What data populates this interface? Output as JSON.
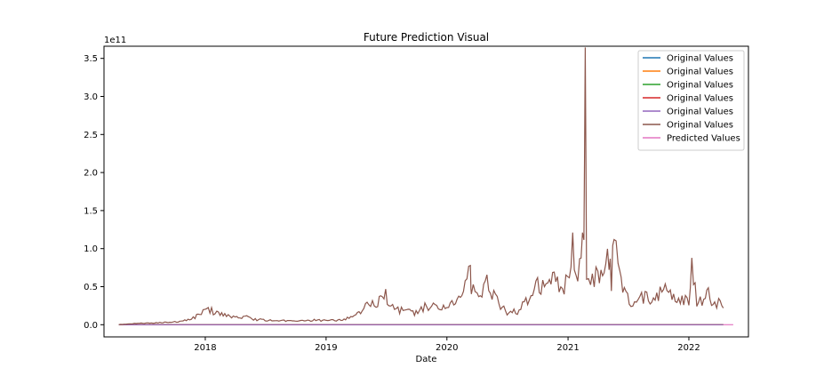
{
  "chart_data": {
    "type": "line",
    "title": "Future Prediction Visual",
    "xlabel": "Date",
    "ylabel": "",
    "y_offset_label": "1e11",
    "xlim": [
      "2017-03-01",
      "2022-06-30"
    ],
    "ylim": [
      -16000000000.0,
      366000000000.0
    ],
    "x_ticks": [
      {
        "label": "2018",
        "date": "2018-01-01"
      },
      {
        "label": "2019",
        "date": "2019-01-01"
      },
      {
        "label": "2020",
        "date": "2020-01-01"
      },
      {
        "label": "2021",
        "date": "2021-01-01"
      },
      {
        "label": "2022",
        "date": "2022-01-01"
      }
    ],
    "y_ticks": [
      {
        "label": "0.0",
        "value": 0
      },
      {
        "label": "0.5",
        "value": 50000000000.0
      },
      {
        "label": "1.0",
        "value": 100000000000.0
      },
      {
        "label": "1.5",
        "value": 150000000000.0
      },
      {
        "label": "2.0",
        "value": 200000000000.0
      },
      {
        "label": "2.5",
        "value": 250000000000.0
      },
      {
        "label": "3.0",
        "value": 300000000000.0
      },
      {
        "label": "3.5",
        "value": 350000000000.0
      }
    ],
    "legend_position": "top-right",
    "grid": false,
    "series": [
      {
        "name": "Original Values",
        "color": "#1f77b4",
        "x": [
          "2017-04-15",
          "2022-04-15"
        ],
        "values": [
          0,
          0
        ]
      },
      {
        "name": "Original Values",
        "color": "#ff7f0e",
        "x": [
          "2017-04-15",
          "2022-04-15"
        ],
        "values": [
          0,
          0
        ]
      },
      {
        "name": "Original Values",
        "color": "#2ca02c",
        "x": [
          "2017-04-15",
          "2022-04-15"
        ],
        "values": [
          0,
          0
        ]
      },
      {
        "name": "Original Values",
        "color": "#d62728",
        "x": [
          "2017-04-15",
          "2022-04-15"
        ],
        "values": [
          0,
          0
        ]
      },
      {
        "name": "Original Values",
        "color": "#9467bd",
        "x": [
          "2017-04-15",
          "2022-04-15"
        ],
        "values": [
          0,
          0
        ]
      },
      {
        "name": "Original Values",
        "color": "#8c564b",
        "x": [
          "2017-04-15",
          "2017-06-01",
          "2017-08-01",
          "2017-10-01",
          "2017-11-15",
          "2017-12-01",
          "2017-12-20",
          "2018-01-05",
          "2018-01-20",
          "2018-02-10",
          "2018-03-01",
          "2018-04-01",
          "2018-05-01",
          "2018-06-01",
          "2018-07-01",
          "2018-08-01",
          "2018-09-01",
          "2018-10-01",
          "2018-11-01",
          "2018-12-01",
          "2019-01-01",
          "2019-02-01",
          "2019-03-01",
          "2019-04-01",
          "2019-04-20",
          "2019-05-10",
          "2019-06-01",
          "2019-06-25",
          "2019-07-10",
          "2019-08-01",
          "2019-09-01",
          "2019-09-25",
          "2019-10-10",
          "2019-11-01",
          "2019-12-01",
          "2020-01-01",
          "2020-02-01",
          "2020-02-20",
          "2020-03-12",
          "2020-03-15",
          "2020-04-01",
          "2020-05-01",
          "2020-06-01",
          "2020-07-01",
          "2020-08-01",
          "2020-09-01",
          "2020-10-01",
          "2020-11-01",
          "2020-11-25",
          "2020-12-15",
          "2021-01-05",
          "2021-01-15",
          "2021-01-25",
          "2021-02-05",
          "2021-02-18",
          "2021-02-22",
          "2021-02-26",
          "2021-03-10",
          "2021-04-01",
          "2021-04-20",
          "2021-05-05",
          "2021-05-12",
          "2021-05-20",
          "2021-06-01",
          "2021-06-20",
          "2021-07-10",
          "2021-08-01",
          "2021-09-01",
          "2021-10-01",
          "2021-11-01",
          "2021-12-01",
          "2022-01-01",
          "2022-01-10",
          "2022-01-25",
          "2022-02-15",
          "2022-03-01",
          "2022-03-20",
          "2022-04-01",
          "2022-04-15"
        ],
        "values": [
          200000000.0,
          1500000000.0,
          2500000000.0,
          4000000000.0,
          6000000000.0,
          10000000000.0,
          15000000000.0,
          23000000000.0,
          18000000000.0,
          14000000000.0,
          12000000000.0,
          9000000000.0,
          10000000000.0,
          7000000000.0,
          6000000000.0,
          5000000000.0,
          5000000000.0,
          4000000000.0,
          5000000000.0,
          6000000000.0,
          5000000000.0,
          6000000000.0,
          8000000000.0,
          12000000000.0,
          20000000000.0,
          32000000000.0,
          22000000000.0,
          45000000000.0,
          25000000000.0,
          20000000000.0,
          17000000000.0,
          15000000000.0,
          18000000000.0,
          25000000000.0,
          22000000000.0,
          25000000000.0,
          30000000000.0,
          40000000000.0,
          74000000000.0,
          45000000000.0,
          40000000000.0,
          55000000000.0,
          30000000000.0,
          15000000000.0,
          18000000000.0,
          35000000000.0,
          50000000000.0,
          45000000000.0,
          65000000000.0,
          45000000000.0,
          70000000000.0,
          122000000000.0,
          60000000000.0,
          75000000000.0,
          120000000000.0,
          350000000000.0,
          60000000000.0,
          55000000000.0,
          65000000000.0,
          70000000000.0,
          95000000000.0,
          50000000000.0,
          126000000000.0,
          70000000000.0,
          40000000000.0,
          30000000000.0,
          35000000000.0,
          35000000000.0,
          40000000000.0,
          45000000000.0,
          35000000000.0,
          30000000000.0,
          84000000000.0,
          30000000000.0,
          30000000000.0,
          40000000000.0,
          25000000000.0,
          30000000000.0,
          22000000000.0
        ]
      },
      {
        "name": "Predicted Values",
        "color": "#e377c2",
        "x": [
          "2022-04-15",
          "2022-05-15"
        ],
        "values": [
          0,
          0
        ]
      }
    ]
  }
}
